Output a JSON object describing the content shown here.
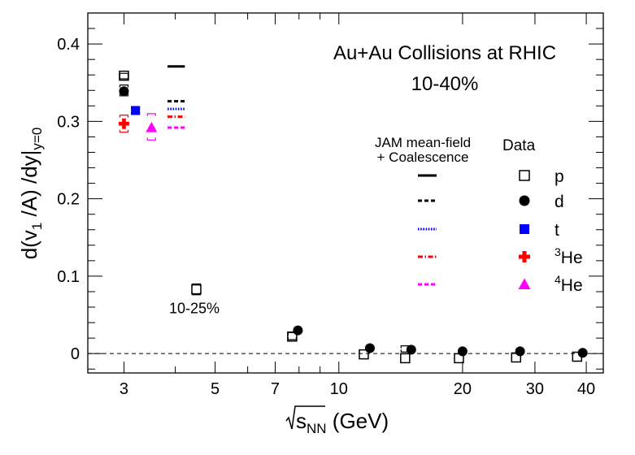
{
  "chart_data": {
    "type": "scatter",
    "title": "Au+Au Collisions at RHIC",
    "subtitle": "10-40%",
    "xlabel": {
      "prefix": "s",
      "sub": "NN",
      "suffix": " (GeV)"
    },
    "ylabel": {
      "t1": "d(v",
      "s1": "1",
      "t2": " /A) /dy|",
      "s2": "y=0"
    },
    "xscale": "log",
    "xlim": [
      2.45,
      44
    ],
    "ylim": [
      -0.025,
      0.44
    ],
    "x_ticks": [
      {
        "v": 3,
        "label": "3"
      },
      {
        "v": 5,
        "label": "5"
      },
      {
        "v": 7,
        "label": "7"
      },
      {
        "v": 10,
        "label": "10"
      },
      {
        "v": 20,
        "label": "20"
      },
      {
        "v": 30,
        "label": "30"
      },
      {
        "v": 40,
        "label": "40"
      }
    ],
    "y_ticks": [
      {
        "v": 0,
        "label": "0"
      },
      {
        "v": 0.1,
        "label": "0.1"
      },
      {
        "v": 0.2,
        "label": "0.2"
      },
      {
        "v": 0.3,
        "label": "0.3"
      },
      {
        "v": 0.4,
        "label": "0.4"
      }
    ],
    "reference_line": 0,
    "annotation": {
      "text": "10-25%",
      "x": 4.45,
      "y": 0.052
    },
    "model_label": {
      "line1": "JAM mean-field",
      "line2": "+ Coalescence"
    },
    "data_label": "Data",
    "legend": [
      {
        "label": "p",
        "sup": "",
        "marker": "open-square",
        "color": "#000000",
        "model_line": "solid",
        "model_color": "#000000"
      },
      {
        "label": "d",
        "sup": "",
        "marker": "circle",
        "color": "#000000",
        "model_line": "dashed",
        "model_color": "#000000"
      },
      {
        "label": "t",
        "sup": "",
        "marker": "square",
        "color": "#0000ff",
        "model_line": "dotted",
        "model_color": "#0000ff"
      },
      {
        "label": "He",
        "sup": "3",
        "marker": "cross",
        "color": "#ff0000",
        "model_line": "dashdot",
        "model_color": "#ff0000"
      },
      {
        "label": "He",
        "sup": "4",
        "marker": "triangle",
        "color": "#ff00ff",
        "model_line": "dashed",
        "model_color": "#ff00ff"
      }
    ],
    "series": [
      {
        "name": "p",
        "marker": "open-square",
        "color": "#000000",
        "points": [
          {
            "x": 3.0,
            "y": 0.359
          },
          {
            "x": 4.5,
            "y": 0.083
          },
          {
            "x": 7.7,
            "y": 0.022
          },
          {
            "x": 11.5,
            "y": -0.001
          },
          {
            "x": 14.5,
            "y": -0.006
          },
          {
            "x": 19.6,
            "y": -0.006
          },
          {
            "x": 27,
            "y": -0.005
          },
          {
            "x": 38,
            "y": -0.004
          }
        ]
      },
      {
        "name": "d",
        "marker": "circle",
        "color": "#000000",
        "points": [
          {
            "x": 3.0,
            "y": 0.339
          },
          {
            "x": 7.95,
            "y": 0.03
          },
          {
            "x": 11.9,
            "y": 0.007
          },
          {
            "x": 15.0,
            "y": 0.005
          },
          {
            "x": 20.0,
            "y": 0.003
          },
          {
            "x": 27.6,
            "y": 0.003
          },
          {
            "x": 39.2,
            "y": 0.001
          }
        ]
      },
      {
        "name": "t",
        "marker": "square",
        "color": "#0000ff",
        "points": [
          {
            "x": 3.2,
            "y": 0.314
          }
        ]
      },
      {
        "name": "3He",
        "marker": "cross",
        "color": "#ff0000",
        "points": [
          {
            "x": 3.0,
            "y": 0.297
          }
        ]
      },
      {
        "name": "4He",
        "marker": "triangle",
        "color": "#ff00ff",
        "points": [
          {
            "x": 3.5,
            "y": 0.292
          }
        ]
      }
    ],
    "model": [
      {
        "name": "p",
        "line": "solid",
        "color": "#000000",
        "y": 0.371
      },
      {
        "name": "d",
        "line": "dashed",
        "color": "#000000",
        "y": 0.326
      },
      {
        "name": "t",
        "line": "dotted",
        "color": "#0000ff",
        "y": 0.316
      },
      {
        "name": "3He",
        "line": "dashdot",
        "color": "#ff0000",
        "y": 0.306
      },
      {
        "name": "4He",
        "line": "dashed",
        "color": "#ff00ff",
        "y": 0.292
      }
    ],
    "model_x": [
      3.83,
      4.22
    ],
    "systematics": [
      {
        "name": "p",
        "color": "#000000",
        "x": 3.0,
        "lo": 0.355,
        "hi": 0.362
      },
      {
        "name": "d",
        "color": "#000000",
        "x": 3.0,
        "lo": 0.333,
        "hi": 0.347
      },
      {
        "name": "t",
        "color": "#0000ff",
        "x": 3.2,
        "lo": 0.309,
        "hi": 0.319
      },
      {
        "name": "3He",
        "color": "#ff0000",
        "x": 3.0,
        "lo": 0.286,
        "hi": 0.308
      },
      {
        "name": "4He",
        "color": "#ff00ff",
        "x": 3.5,
        "lo": 0.276,
        "hi": 0.31
      },
      {
        "name": "p",
        "color": "#000000",
        "x": 4.5,
        "lo": 0.076,
        "hi": 0.09
      },
      {
        "name": "p",
        "color": "#000000",
        "x": 7.7,
        "lo": 0.018,
        "hi": 0.027
      },
      {
        "name": "d",
        "color": "#000000",
        "x": 14.5,
        "lo": 0.002,
        "hi": 0.01
      }
    ]
  }
}
